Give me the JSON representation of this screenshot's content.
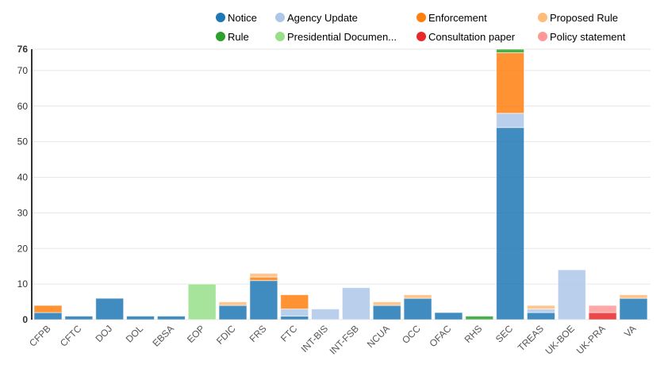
{
  "chart_data": {
    "type": "bar",
    "stacked": true,
    "categories": [
      "CFPB",
      "CFTC",
      "DOJ",
      "DOL",
      "EBSA",
      "EOP",
      "FDIC",
      "FRS",
      "FTC",
      "INT-BIS",
      "INT-FSB",
      "NCUA",
      "OCC",
      "OFAC",
      "RHS",
      "SEC",
      "TREAS",
      "UK-BOE",
      "UK-PRA",
      "VA"
    ],
    "series": [
      {
        "name": "Notice",
        "color": "#1f77b4",
        "values": [
          2,
          1,
          6,
          1,
          1,
          0,
          4,
          11,
          1,
          0,
          0,
          4,
          6,
          2,
          0,
          54,
          2,
          0,
          0,
          6
        ]
      },
      {
        "name": "Agency Update",
        "color": "#aec7e8",
        "values": [
          0,
          0,
          0,
          0,
          0,
          0,
          0,
          0,
          2,
          3,
          9,
          0,
          0,
          0,
          0,
          4,
          1,
          14,
          0,
          0
        ]
      },
      {
        "name": "Enforcement",
        "color": "#ff7f0e",
        "values": [
          2,
          0,
          0,
          0,
          0,
          0,
          0,
          1,
          4,
          0,
          0,
          0,
          0,
          0,
          0,
          17,
          0,
          0,
          0,
          0
        ]
      },
      {
        "name": "Proposed Rule",
        "color": "#ffbb78",
        "values": [
          0,
          0,
          0,
          0,
          0,
          0,
          1,
          1,
          0,
          0,
          0,
          1,
          1,
          0,
          0,
          0,
          1,
          0,
          0,
          1
        ]
      },
      {
        "name": "Rule",
        "color": "#2ca02c",
        "values": [
          0,
          0,
          0,
          0,
          0,
          0,
          0,
          0,
          0,
          0,
          0,
          0,
          0,
          0,
          1,
          1,
          0,
          0,
          0,
          0
        ]
      },
      {
        "name": "Presidential Documen...",
        "color": "#98df8a",
        "values": [
          0,
          0,
          0,
          0,
          0,
          10,
          0,
          0,
          0,
          0,
          0,
          0,
          0,
          0,
          0,
          0,
          0,
          0,
          0,
          0
        ]
      },
      {
        "name": "Consultation paper",
        "color": "#e8282a",
        "values": [
          0,
          0,
          0,
          0,
          0,
          0,
          0,
          0,
          0,
          0,
          0,
          0,
          0,
          0,
          0,
          0,
          0,
          0,
          2,
          0
        ]
      },
      {
        "name": "Policy statement",
        "color": "#ff9896",
        "values": [
          0,
          0,
          0,
          0,
          0,
          0,
          0,
          0,
          0,
          0,
          0,
          0,
          0,
          0,
          0,
          0,
          0,
          0,
          2,
          0
        ]
      }
    ],
    "yticks": [
      0,
      10,
      20,
      30,
      40,
      50,
      60,
      70,
      76
    ],
    "ylim": [
      0,
      76
    ],
    "grid": true,
    "legend": "top"
  }
}
